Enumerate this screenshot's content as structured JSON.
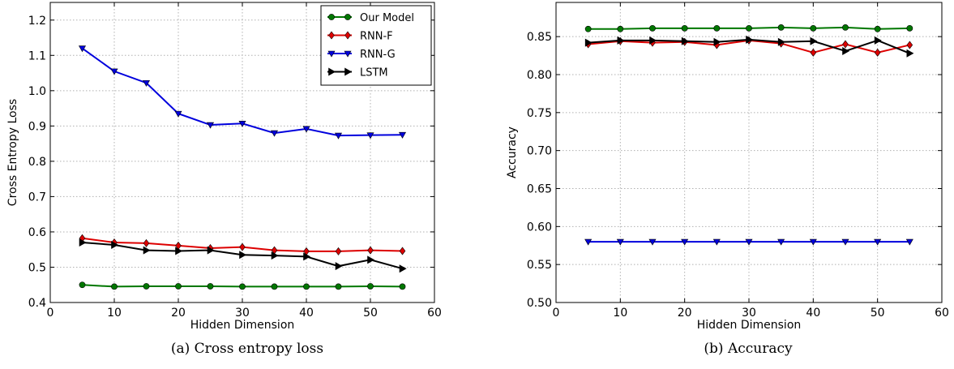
{
  "figures": [
    {
      "caption": "(a) Cross entropy loss",
      "chart_data": {
        "type": "line",
        "xlabel": "Hidden Dimension",
        "ylabel": "Cross Entropy Loss",
        "xlim": [
          0,
          60
        ],
        "ylim": [
          0.4,
          1.25
        ],
        "xticks": [
          "0",
          "10",
          "20",
          "30",
          "40",
          "50",
          "60"
        ],
        "yticks": [
          "0.4",
          "0.5",
          "0.6",
          "0.7",
          "0.8",
          "0.9",
          "1.0",
          "1.1",
          "1.2"
        ],
        "grid": true,
        "legend": "top-right",
        "x": [
          5,
          10,
          15,
          20,
          25,
          30,
          35,
          40,
          45,
          50,
          55
        ],
        "series": [
          {
            "name": "Our Model",
            "color": "#007700",
            "marker": "circle",
            "values": [
              0.45,
              0.445,
              0.446,
              0.446,
              0.446,
              0.445,
              0.445,
              0.445,
              0.445,
              0.446,
              0.445
            ]
          },
          {
            "name": "RNN-F",
            "color": "#dd0000",
            "marker": "diamond",
            "values": [
              0.582,
              0.57,
              0.568,
              0.561,
              0.554,
              0.557,
              0.548,
              0.545,
              0.545,
              0.548,
              0.546
            ]
          },
          {
            "name": "RNN-G",
            "color": "#0000dd",
            "marker": "triangle-down",
            "values": [
              1.12,
              1.055,
              1.022,
              0.935,
              0.903,
              0.907,
              0.88,
              0.892,
              0.873,
              0.874,
              0.875
            ]
          },
          {
            "name": "LSTM",
            "color": "#000000",
            "marker": "triangle-right",
            "values": [
              0.57,
              0.563,
              0.548,
              0.546,
              0.548,
              0.535,
              0.533,
              0.53,
              0.503,
              0.521,
              0.496
            ]
          }
        ]
      }
    },
    {
      "caption": "(b) Accuracy",
      "chart_data": {
        "type": "line",
        "xlabel": "Hidden Dimension",
        "ylabel": "Accuracy",
        "xlim": [
          0,
          60
        ],
        "ylim": [
          0.5,
          0.895
        ],
        "xticks": [
          "0",
          "10",
          "20",
          "30",
          "40",
          "50",
          "60"
        ],
        "yticks": [
          "0.50",
          "0.55",
          "0.60",
          "0.65",
          "0.70",
          "0.75",
          "0.80",
          "0.85"
        ],
        "grid": true,
        "legend": "",
        "x": [
          5,
          10,
          15,
          20,
          25,
          30,
          35,
          40,
          45,
          50,
          55
        ],
        "series": [
          {
            "name": "Our Model",
            "color": "#007700",
            "marker": "circle",
            "values": [
              0.86,
              0.86,
              0.861,
              0.861,
              0.861,
              0.861,
              0.862,
              0.861,
              0.862,
              0.86,
              0.861
            ]
          },
          {
            "name": "RNN-F",
            "color": "#dd0000",
            "marker": "diamond",
            "values": [
              0.84,
              0.844,
              0.842,
              0.843,
              0.839,
              0.845,
              0.841,
              0.829,
              0.84,
              0.829,
              0.839
            ]
          },
          {
            "name": "RNN-G",
            "color": "#0000dd",
            "marker": "triangle-down",
            "values": [
              0.58,
              0.58,
              0.58,
              0.58,
              0.58,
              0.58,
              0.58,
              0.58,
              0.58,
              0.58,
              0.58
            ]
          },
          {
            "name": "LSTM",
            "color": "#000000",
            "marker": "triangle-right",
            "values": [
              0.842,
              0.845,
              0.845,
              0.844,
              0.843,
              0.846,
              0.843,
              0.844,
              0.831,
              0.845,
              0.828
            ]
          }
        ]
      }
    }
  ]
}
